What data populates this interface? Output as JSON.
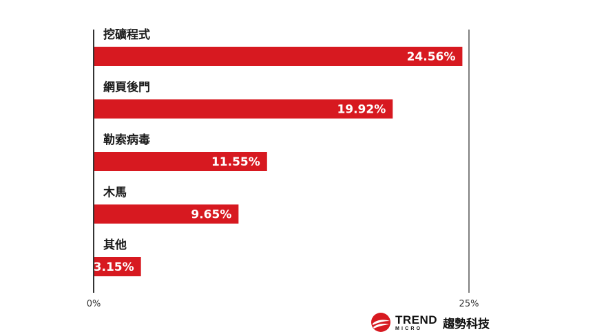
{
  "chart_data": {
    "type": "bar",
    "orientation": "horizontal",
    "categories": [
      "挖礦程式",
      "網頁後門",
      "勒索病毒",
      "木馬",
      "其他"
    ],
    "values": [
      24.56,
      19.92,
      11.55,
      9.65,
      3.15
    ],
    "value_labels": [
      "24.56%",
      "19.92%",
      "11.55%",
      "9.65%",
      "3.15%"
    ],
    "xlim": [
      0,
      25
    ],
    "x_ticks": [
      "0%",
      "25%"
    ],
    "grid": false,
    "colors": {
      "bar": "#d71920",
      "axis": "#333333"
    }
  },
  "brand": {
    "name": "TREND",
    "sub": "MICRO",
    "cn": "趨勢科技"
  }
}
